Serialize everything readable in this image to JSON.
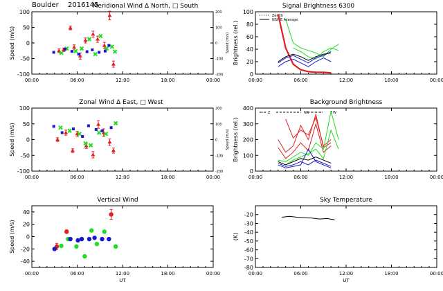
{
  "header": {
    "site": "Boulder",
    "date": "2016145"
  },
  "colors": {
    "red": "#e02020",
    "green": "#22dd22",
    "blue": "#1818cc",
    "black": "#000000"
  },
  "chart_data": [
    {
      "id": "meridional",
      "type": "scatter",
      "title": "Meridional Wind   Δ North, □ South",
      "ylabel": "Speed (m/s)",
      "ylabel_right": "Speed (m/s)",
      "ylim": [
        -100,
        100
      ],
      "yticks": [
        "100",
        "50",
        "0",
        "-50",
        "-100"
      ],
      "yticks_right": [
        "200",
        "100",
        "0",
        "-100",
        "-200"
      ],
      "xlim": [
        0,
        24
      ],
      "xticks": [
        "00:00",
        "06:00",
        "12:00",
        "18:00",
        "00:00"
      ],
      "xlabel": "",
      "series": [
        {
          "color": "red",
          "marker": "triangle",
          "x": [
            3.6,
            4.2,
            5.1,
            5.6,
            6.4,
            7.1,
            8.1,
            8.7,
            9.6,
            10.3,
            10.8
          ],
          "y": [
            -25,
            -22,
            48,
            -14,
            -42,
            8,
            28,
            12,
            -8,
            88,
            -68
          ],
          "err": [
            6,
            6,
            6,
            8,
            10,
            8,
            10,
            10,
            10,
            14,
            10
          ]
        },
        {
          "color": "green",
          "marker": "cross",
          "x": [
            3.9,
            4.6,
            5.8,
            6.6,
            7.6,
            8.4,
            9.1,
            9.9,
            10.6,
            11.0
          ],
          "y": [
            -32,
            -18,
            -26,
            -18,
            12,
            -36,
            22,
            -18,
            -12,
            -28
          ]
        },
        {
          "color": "blue",
          "marker": "square",
          "x": [
            2.9,
            4.4,
            5.3,
            6.2,
            7.3,
            8.0,
            8.9,
            9.7,
            10.2
          ],
          "y": [
            -30,
            -20,
            -27,
            -36,
            -28,
            -22,
            -30,
            -26,
            -8
          ]
        }
      ]
    },
    {
      "id": "zonal",
      "type": "scatter",
      "title": "Zonal Wind     Δ East, □ West",
      "ylabel": "Speed (m/s)",
      "ylabel_right": "Speed (m/s)",
      "ylim": [
        -100,
        100
      ],
      "yticks": [
        "100",
        "50",
        "0",
        "-50",
        "-100"
      ],
      "yticks_right": [
        "200",
        "100",
        "0",
        "-100",
        "-200"
      ],
      "xlim": [
        0,
        24
      ],
      "xticks": [
        "00:00",
        "06:00",
        "12:00",
        "18:00",
        "00:00"
      ],
      "xlabel": "",
      "series": [
        {
          "color": "red",
          "marker": "triangle",
          "x": [
            3.4,
            4.5,
            5.4,
            6.0,
            7.2,
            8.1,
            8.8,
            9.5,
            10.3,
            10.8
          ],
          "y": [
            0,
            22,
            -35,
            18,
            -20,
            -48,
            48,
            22,
            -8,
            -35
          ],
          "err": [
            6,
            8,
            6,
            8,
            8,
            10,
            12,
            12,
            10,
            8
          ]
        },
        {
          "color": "green",
          "marker": "cross",
          "x": [
            3.8,
            5.0,
            6.3,
            7.1,
            7.8,
            8.9,
            9.8,
            11.1
          ],
          "y": [
            38,
            28,
            18,
            -12,
            -18,
            22,
            18,
            52
          ]
        },
        {
          "color": "blue",
          "marker": "square",
          "x": [
            2.9,
            4.0,
            5.5,
            6.7,
            7.5,
            8.5,
            9.3,
            10.5
          ],
          "y": [
            42,
            22,
            34,
            10,
            44,
            32,
            28,
            38
          ]
        }
      ]
    },
    {
      "id": "vertical",
      "type": "scatter",
      "title": "Vertical Wind",
      "ylabel": "Speed (m/s)",
      "ylim": [
        -50,
        50
      ],
      "yticks": [
        "40",
        "20",
        "0",
        "-20",
        "-40"
      ],
      "xlim": [
        0,
        24
      ],
      "xticks": [
        "00:00",
        "06:00",
        "12:00",
        "18:00",
        "00:00"
      ],
      "xlabel": "UT",
      "series": [
        {
          "color": "red",
          "marker": "circle",
          "x": [
            3.3,
            4.6,
            10.5
          ],
          "y": [
            -16,
            8,
            36
          ],
          "err": [
            5,
            3,
            8
          ]
        },
        {
          "color": "green",
          "marker": "circle",
          "x": [
            3.9,
            4.8,
            5.9,
            7.0,
            7.9,
            8.6,
            9.6,
            11.1
          ],
          "y": [
            -15,
            -4,
            -16,
            -32,
            10,
            -12,
            8,
            -16
          ]
        },
        {
          "color": "blue",
          "marker": "circle",
          "x": [
            3.0,
            5.1,
            6.1,
            6.6,
            7.6,
            8.3,
            9.3,
            10.2
          ],
          "y": [
            -20,
            -4,
            -6,
            -4,
            -4,
            -2,
            -4,
            -4
          ]
        }
      ]
    },
    {
      "id": "signal",
      "type": "line",
      "title": "Signal Brightness       6300",
      "ylabel": "Brightness (rel.)",
      "ylim": [
        0,
        100
      ],
      "yticks": [
        "100",
        "80",
        "60",
        "40",
        "20",
        "0"
      ],
      "xlim": [
        0,
        24
      ],
      "xticks": [
        "00:00",
        "06:00",
        "12:00",
        "18:00",
        "00:00"
      ],
      "xlabel": "",
      "legend": [
        "Zenith",
        "NSWE Average"
      ],
      "series": [
        {
          "color": "red",
          "width": 2.2,
          "x": [
            3,
            4,
            5,
            6,
            7,
            8,
            9,
            10
          ],
          "y": [
            96,
            42,
            16,
            7,
            4,
            3,
            3,
            2
          ]
        },
        {
          "color": "green",
          "width": 1,
          "x": [
            4,
            5,
            6,
            7,
            8,
            9,
            10,
            11
          ],
          "y": [
            88,
            50,
            42,
            38,
            34,
            28,
            40,
            48
          ]
        },
        {
          "color": "green",
          "width": 1,
          "x": [
            5,
            6,
            7,
            8,
            9,
            10,
            11
          ],
          "y": [
            42,
            36,
            28,
            24,
            36,
            42,
            38
          ]
        },
        {
          "color": "blue",
          "width": 1,
          "x": [
            3,
            4,
            5,
            6,
            7,
            8,
            9,
            10
          ],
          "y": [
            18,
            26,
            30,
            24,
            18,
            26,
            30,
            36
          ]
        },
        {
          "color": "blue",
          "width": 1,
          "x": [
            3,
            4,
            5,
            6,
            7,
            8,
            9,
            10
          ],
          "y": [
            12,
            20,
            24,
            18,
            12,
            20,
            26,
            20
          ]
        },
        {
          "color": "black",
          "width": 1,
          "x": [
            3,
            4,
            5,
            6,
            7,
            8,
            9,
            10
          ],
          "y": [
            20,
            28,
            32,
            28,
            22,
            28,
            32,
            34
          ]
        }
      ]
    },
    {
      "id": "background",
      "type": "line",
      "title": "Background Brightness",
      "ylabel": "Brightness (rel.)",
      "ylim": [
        0,
        400
      ],
      "yticks": [
        "400",
        "300",
        "200",
        "100",
        "0"
      ],
      "xlim": [
        0,
        24
      ],
      "xticks": [
        "00:00",
        "06:00",
        "12:00",
        "18:00",
        "00:00"
      ],
      "xlabel": "",
      "legend": [
        "Z",
        "N",
        "S",
        "E",
        "W"
      ],
      "series": [
        {
          "color": "red",
          "width": 1,
          "x": [
            3,
            4,
            5,
            6,
            7,
            8,
            9,
            10
          ],
          "y": [
            200,
            120,
            160,
            290,
            200,
            360,
            150,
            180
          ]
        },
        {
          "color": "red",
          "width": 1,
          "x": [
            3,
            4,
            5,
            6,
            7,
            8,
            9,
            10
          ],
          "y": [
            150,
            80,
            120,
            180,
            130,
            300,
            120,
            160
          ]
        },
        {
          "color": "red",
          "width": 1,
          "x": [
            4,
            5,
            6,
            7,
            8,
            9,
            10
          ],
          "y": [
            330,
            210,
            260,
            230,
            340,
            160,
            200
          ]
        },
        {
          "color": "green",
          "width": 1,
          "x": [
            3,
            4,
            5,
            6,
            7,
            8,
            9,
            10,
            11
          ],
          "y": [
            70,
            60,
            90,
            120,
            100,
            180,
            140,
            380,
            200
          ]
        },
        {
          "color": "green",
          "width": 1,
          "x": [
            3,
            4,
            5,
            6,
            7,
            8,
            9,
            10,
            11
          ],
          "y": [
            60,
            40,
            70,
            90,
            110,
            140,
            80,
            260,
            140
          ]
        },
        {
          "color": "blue",
          "width": 1,
          "x": [
            3,
            4,
            5,
            6,
            7,
            8,
            9,
            10
          ],
          "y": [
            50,
            30,
            40,
            60,
            40,
            70,
            50,
            30
          ]
        },
        {
          "color": "blue",
          "width": 1,
          "x": [
            3,
            4,
            5,
            6,
            7,
            8,
            9,
            10
          ],
          "y": [
            40,
            20,
            30,
            40,
            140,
            60,
            40,
            20
          ]
        },
        {
          "color": "black",
          "width": 1,
          "x": [
            3,
            4,
            5,
            6,
            7,
            8,
            9,
            10
          ],
          "y": [
            60,
            40,
            60,
            80,
            70,
            90,
            70,
            50
          ]
        }
      ]
    },
    {
      "id": "skytemp",
      "type": "line",
      "title": "Sky Temperature",
      "ylabel": "(K)",
      "ylim": [
        -80,
        -10
      ],
      "yticks": [
        "-20",
        "-30",
        "-40",
        "-50",
        "-60",
        "-70",
        "-80"
      ],
      "xlim": [
        0,
        24
      ],
      "xticks": [
        "00:00",
        "06:00",
        "12:00",
        "18:00",
        "00:00"
      ],
      "xlabel": "UT",
      "series": [
        {
          "color": "black",
          "width": 1,
          "x": [
            3.5,
            4.5,
            5.5,
            6.5,
            7.5,
            8.5,
            9.5,
            10.5
          ],
          "y": [
            -23,
            -22,
            -23,
            -23.5,
            -24,
            -25,
            -24.5,
            -26
          ]
        }
      ]
    }
  ]
}
